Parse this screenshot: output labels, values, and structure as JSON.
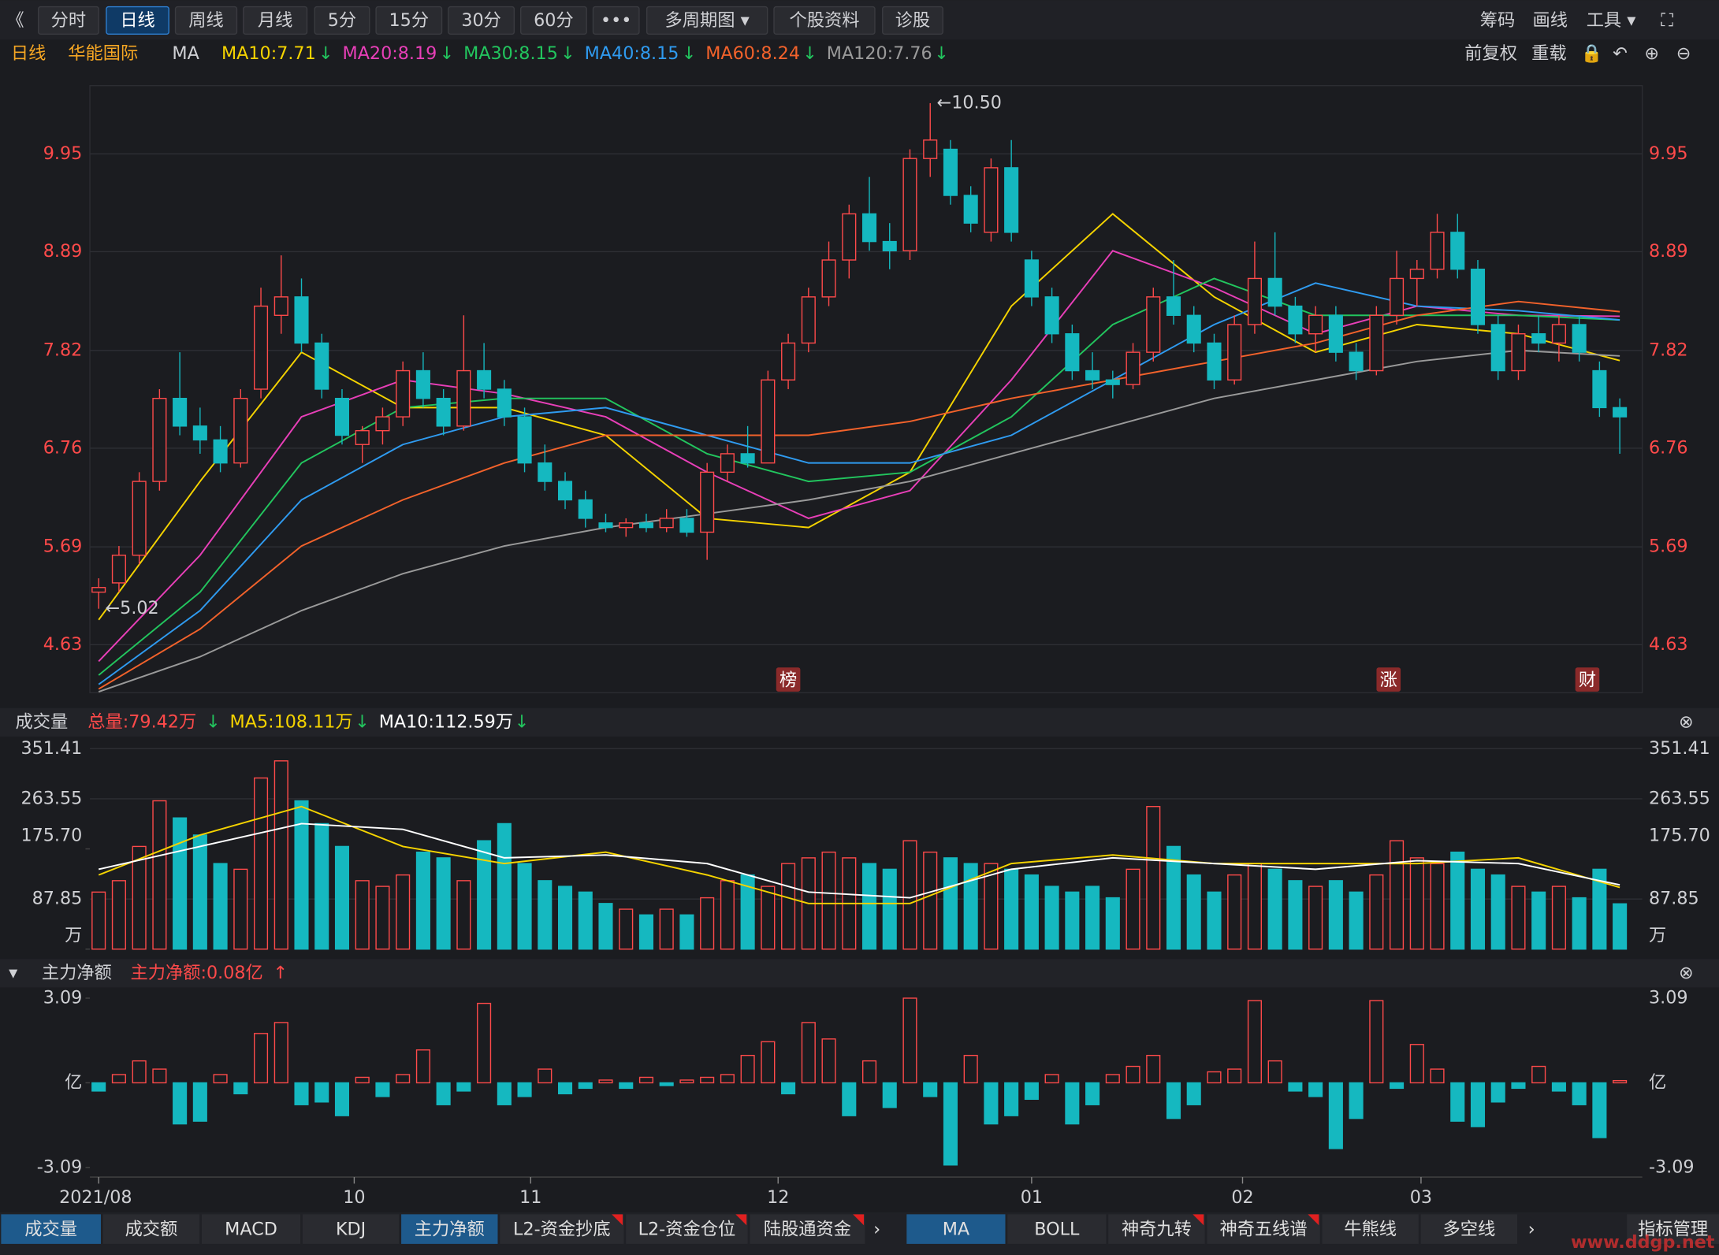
{
  "toolbar": {
    "left": [
      "《",
      "分时",
      "日线",
      "周线",
      "月线",
      "5分",
      "15分",
      "30分",
      "60分",
      "•••",
      "多周期图 ▾",
      "个股资料",
      "诊股"
    ],
    "active": 2,
    "right": [
      "筹码",
      "画线",
      "工具 ▾"
    ]
  },
  "header": {
    "period": "日线",
    "stock": "华能国际",
    "indicator": "MA",
    "right": [
      "前复权",
      "重载"
    ]
  },
  "chart_data": [
    {
      "type": "candlestick",
      "ylim": [
        4.11,
        10.69
      ],
      "yticks": [
        4.63,
        5.69,
        6.76,
        7.82,
        8.89,
        9.95
      ],
      "grid": true,
      "up_color": "#ff4a4a",
      "down_color": "#15b8c0",
      "ohlc": [
        [
          5.2,
          5.35,
          5.02,
          5.25
        ],
        [
          5.3,
          5.7,
          5.2,
          5.6
        ],
        [
          5.6,
          6.5,
          5.5,
          6.4
        ],
        [
          6.4,
          7.4,
          6.3,
          7.3
        ],
        [
          7.3,
          7.8,
          6.9,
          7.0
        ],
        [
          7.0,
          7.2,
          6.7,
          6.85
        ],
        [
          6.85,
          7.0,
          6.5,
          6.6
        ],
        [
          6.6,
          7.4,
          6.55,
          7.3
        ],
        [
          7.4,
          8.5,
          7.3,
          8.3
        ],
        [
          8.2,
          8.85,
          8.0,
          8.4
        ],
        [
          8.4,
          8.6,
          7.8,
          7.9
        ],
        [
          7.9,
          8.0,
          7.3,
          7.4
        ],
        [
          7.3,
          7.4,
          6.8,
          6.9
        ],
        [
          6.8,
          7.0,
          6.6,
          6.95
        ],
        [
          6.95,
          7.2,
          6.8,
          7.1
        ],
        [
          7.1,
          7.7,
          7.0,
          7.6
        ],
        [
          7.6,
          7.8,
          7.2,
          7.3
        ],
        [
          7.3,
          7.4,
          6.9,
          7.0
        ],
        [
          7.0,
          8.2,
          6.95,
          7.6
        ],
        [
          7.6,
          7.9,
          7.3,
          7.4
        ],
        [
          7.4,
          7.5,
          7.0,
          7.1
        ],
        [
          7.1,
          7.2,
          6.5,
          6.6
        ],
        [
          6.6,
          6.8,
          6.3,
          6.4
        ],
        [
          6.4,
          6.5,
          6.1,
          6.2
        ],
        [
          6.2,
          6.3,
          5.9,
          6.0
        ],
        [
          5.95,
          6.05,
          5.85,
          5.9
        ],
        [
          5.9,
          6.0,
          5.8,
          5.95
        ],
        [
          5.95,
          6.05,
          5.85,
          5.9
        ],
        [
          5.9,
          6.1,
          5.85,
          6.0
        ],
        [
          6.0,
          6.1,
          5.8,
          5.85
        ],
        [
          5.85,
          6.6,
          5.55,
          6.5
        ],
        [
          6.5,
          6.8,
          6.4,
          6.7
        ],
        [
          6.7,
          7.0,
          6.55,
          6.6
        ],
        [
          6.6,
          7.6,
          6.6,
          7.5
        ],
        [
          7.5,
          8.0,
          7.4,
          7.9
        ],
        [
          7.9,
          8.5,
          7.8,
          8.4
        ],
        [
          8.4,
          9.0,
          8.3,
          8.8
        ],
        [
          8.8,
          9.4,
          8.6,
          9.3
        ],
        [
          9.3,
          9.7,
          8.9,
          9.0
        ],
        [
          9.0,
          9.2,
          8.7,
          8.9
        ],
        [
          8.9,
          10.0,
          8.8,
          9.9
        ],
        [
          9.9,
          10.5,
          9.7,
          10.1
        ],
        [
          10.0,
          10.1,
          9.4,
          9.5
        ],
        [
          9.5,
          9.6,
          9.1,
          9.2
        ],
        [
          9.1,
          9.9,
          9.0,
          9.8
        ],
        [
          9.8,
          10.1,
          9.0,
          9.1
        ],
        [
          8.8,
          8.9,
          8.3,
          8.4
        ],
        [
          8.4,
          8.5,
          7.9,
          8.0
        ],
        [
          8.0,
          8.1,
          7.5,
          7.6
        ],
        [
          7.6,
          7.8,
          7.4,
          7.5
        ],
        [
          7.5,
          7.6,
          7.3,
          7.45
        ],
        [
          7.45,
          7.9,
          7.4,
          7.8
        ],
        [
          7.8,
          8.5,
          7.7,
          8.4
        ],
        [
          8.4,
          8.8,
          8.1,
          8.2
        ],
        [
          8.2,
          8.3,
          7.8,
          7.9
        ],
        [
          7.9,
          8.0,
          7.4,
          7.5
        ],
        [
          7.5,
          8.2,
          7.45,
          8.1
        ],
        [
          8.1,
          9.0,
          8.0,
          8.6
        ],
        [
          8.6,
          9.1,
          8.2,
          8.3
        ],
        [
          8.3,
          8.4,
          7.9,
          8.0
        ],
        [
          8.0,
          8.3,
          7.8,
          8.2
        ],
        [
          8.2,
          8.3,
          7.7,
          7.8
        ],
        [
          7.8,
          7.9,
          7.5,
          7.6
        ],
        [
          7.6,
          8.3,
          7.55,
          8.2
        ],
        [
          8.2,
          8.9,
          8.1,
          8.6
        ],
        [
          8.6,
          8.8,
          8.3,
          8.7
        ],
        [
          8.7,
          9.3,
          8.6,
          9.1
        ],
        [
          9.1,
          9.3,
          8.6,
          8.7
        ],
        [
          8.7,
          8.8,
          8.0,
          8.1
        ],
        [
          8.1,
          8.2,
          7.5,
          7.6
        ],
        [
          7.6,
          8.1,
          7.5,
          8.0
        ],
        [
          8.0,
          8.2,
          7.8,
          7.9
        ],
        [
          7.9,
          8.2,
          7.7,
          8.1
        ],
        [
          8.1,
          8.2,
          7.7,
          7.8
        ],
        [
          7.6,
          7.7,
          7.1,
          7.2
        ],
        [
          7.2,
          7.3,
          6.7,
          7.1
        ]
      ],
      "series": [
        {
          "name": "MA10:7.71",
          "trend": "↓",
          "color": "#f5d300",
          "x": [
            0,
            5,
            10,
            15,
            20,
            25,
            30,
            35,
            40,
            45,
            50,
            55,
            60,
            65,
            70,
            75
          ],
          "values": [
            4.9,
            6.4,
            7.8,
            7.2,
            7.2,
            6.9,
            6.0,
            5.9,
            6.5,
            8.3,
            9.3,
            8.4,
            7.8,
            8.1,
            8.0,
            7.71
          ]
        },
        {
          "name": "MA20:8.19",
          "trend": "↓",
          "color": "#e83fb8",
          "x": [
            0,
            5,
            10,
            15,
            20,
            25,
            30,
            35,
            40,
            45,
            50,
            55,
            60,
            65,
            70,
            75
          ],
          "values": [
            4.45,
            5.6,
            7.1,
            7.5,
            7.35,
            7.1,
            6.5,
            6.0,
            6.3,
            7.5,
            8.9,
            8.5,
            8.0,
            8.3,
            8.2,
            8.19
          ]
        },
        {
          "name": "MA30:8.15",
          "trend": "↓",
          "color": "#22c55e",
          "x": [
            0,
            5,
            10,
            15,
            20,
            25,
            30,
            35,
            40,
            45,
            50,
            55,
            60,
            65,
            70,
            75
          ],
          "values": [
            4.3,
            5.2,
            6.6,
            7.2,
            7.3,
            7.3,
            6.7,
            6.4,
            6.5,
            7.1,
            8.1,
            8.6,
            8.2,
            8.2,
            8.2,
            8.15
          ]
        },
        {
          "name": "MA40:8.15",
          "trend": "↓",
          "color": "#2f9bf0",
          "x": [
            0,
            5,
            10,
            15,
            20,
            25,
            30,
            35,
            40,
            45,
            50,
            55,
            60,
            65,
            70,
            75
          ],
          "values": [
            4.2,
            5.0,
            6.2,
            6.8,
            7.1,
            7.2,
            6.9,
            6.6,
            6.6,
            6.9,
            7.5,
            8.1,
            8.55,
            8.3,
            8.25,
            8.15
          ]
        },
        {
          "name": "MA60:8.24",
          "trend": "↓",
          "color": "#f2622b",
          "x": [
            0,
            5,
            10,
            15,
            20,
            25,
            30,
            35,
            40,
            45,
            50,
            55,
            60,
            65,
            70,
            75
          ],
          "values": [
            4.15,
            4.8,
            5.7,
            6.2,
            6.6,
            6.9,
            6.9,
            6.9,
            7.05,
            7.3,
            7.5,
            7.7,
            7.9,
            8.2,
            8.35,
            8.24
          ]
        },
        {
          "name": "MA120:7.76",
          "trend": "↓",
          "color": "#9a9a9a",
          "x": [
            0,
            5,
            10,
            15,
            20,
            25,
            30,
            35,
            40,
            45,
            50,
            55,
            60,
            65,
            70,
            75
          ],
          "values": [
            4.12,
            4.5,
            5.0,
            5.4,
            5.7,
            5.9,
            6.05,
            6.2,
            6.4,
            6.7,
            7.0,
            7.3,
            7.5,
            7.7,
            7.82,
            7.76
          ]
        }
      ],
      "annotations": [
        {
          "text": "←10.50",
          "x": 41,
          "y": 10.5
        },
        {
          "text": "←5.02",
          "x": 0,
          "y": 5.02
        }
      ],
      "markers": [
        {
          "text": "榜",
          "x": 34
        },
        {
          "text": "涨",
          "x": 63.6
        },
        {
          "text": "财",
          "x": 73.4
        }
      ]
    },
    {
      "type": "bar",
      "title": "成交量",
      "ylim": [
        0,
        365
      ],
      "yticks": [
        {
          "value": 0,
          "label": "万"
        },
        87.85,
        {
          "value": 175.7,
          "label": "175.70"
        },
        263.55,
        351.41
      ],
      "grid": true,
      "legend": [
        {
          "text": "总量:79.42万",
          "trend": "↓",
          "color": "#ff4a4a"
        },
        {
          "text": "MA5:108.11万",
          "trend": "↓",
          "color": "#f5d300"
        },
        {
          "text": "MA10:112.59万",
          "trend": "↓",
          "color": "#ffffff"
        }
      ],
      "values": [
        100,
        120,
        180,
        260,
        230,
        200,
        150,
        140,
        300,
        330,
        260,
        220,
        180,
        120,
        110,
        130,
        170,
        160,
        120,
        190,
        220,
        150,
        120,
        110,
        100,
        80,
        70,
        60,
        70,
        60,
        90,
        120,
        130,
        110,
        150,
        160,
        170,
        160,
        150,
        140,
        190,
        170,
        160,
        150,
        150,
        140,
        130,
        110,
        100,
        110,
        90,
        140,
        250,
        180,
        130,
        100,
        130,
        150,
        140,
        120,
        110,
        120,
        100,
        130,
        190,
        160,
        150,
        170,
        140,
        130,
        110,
        100,
        110,
        90,
        140,
        79.42
      ],
      "series": [
        {
          "name": "MA5",
          "color": "#f5d300",
          "x": [
            0,
            5,
            10,
            15,
            20,
            25,
            30,
            35,
            40,
            45,
            50,
            55,
            60,
            65,
            70,
            75
          ],
          "values": [
            130,
            200,
            250,
            180,
            150,
            170,
            130,
            80,
            80,
            150,
            165,
            150,
            150,
            150,
            160,
            108.11
          ]
        },
        {
          "name": "MA10",
          "color": "#ffffff",
          "x": [
            0,
            5,
            10,
            15,
            20,
            25,
            30,
            35,
            40,
            45,
            50,
            55,
            60,
            65,
            70,
            75
          ],
          "values": [
            140,
            180,
            220,
            210,
            160,
            165,
            150,
            100,
            90,
            140,
            160,
            150,
            140,
            155,
            150,
            112.59
          ]
        }
      ]
    },
    {
      "type": "bar",
      "title": "主力净额",
      "ylim": [
        -3.4,
        3.4
      ],
      "yticks": [
        -3.09,
        {
          "value": 0,
          "label": "亿"
        },
        3.09
      ],
      "legend": [
        {
          "text": "主力净额:0.08亿",
          "trend": "↑",
          "color": "#ff4a4a"
        }
      ],
      "values": [
        -0.3,
        0.3,
        0.8,
        0.5,
        -1.5,
        -1.4,
        0.3,
        -0.4,
        1.8,
        2.2,
        -0.8,
        -0.7,
        -1.2,
        0.2,
        -0.5,
        0.3,
        1.2,
        -0.8,
        -0.3,
        2.9,
        -0.8,
        -0.5,
        0.5,
        -0.4,
        -0.2,
        0.1,
        -0.2,
        0.2,
        -0.1,
        0.1,
        0.2,
        0.3,
        1.0,
        1.5,
        -0.4,
        2.2,
        1.6,
        -1.2,
        0.8,
        -0.9,
        3.09,
        -0.5,
        -3.0,
        1.0,
        -1.5,
        -1.2,
        -0.6,
        0.3,
        -1.5,
        -0.8,
        0.3,
        0.6,
        1.0,
        -1.3,
        -0.8,
        0.4,
        0.5,
        3.0,
        0.8,
        -0.3,
        -0.5,
        -2.4,
        -1.3,
        3.0,
        -0.2,
        1.4,
        0.5,
        -1.4,
        -1.6,
        -0.7,
        -0.2,
        0.6,
        -0.3,
        -0.8,
        -2.0,
        0.08
      ],
      "xticks": [
        {
          "value": 0,
          "label": "2021/08"
        },
        {
          "value": 12.6,
          "label": "10"
        },
        {
          "value": 21.3,
          "label": "11"
        },
        {
          "value": 33.5,
          "label": "12"
        },
        {
          "value": 46,
          "label": "01"
        },
        {
          "value": 56.4,
          "label": "02"
        },
        {
          "value": 65.2,
          "label": "03"
        }
      ]
    }
  ],
  "tabs": {
    "left": [
      "成交量",
      "成交额",
      "MACD",
      "KDJ",
      "主力净额",
      "L2-资金抄底",
      "L2-资金仓位",
      "陆股通资金"
    ],
    "right": [
      "MA",
      "BOLL",
      "神奇九转",
      "神奇五线谱",
      "牛熊线",
      "多空线"
    ],
    "manage": "指标管理",
    "watermark": "www.ddgp.net"
  }
}
